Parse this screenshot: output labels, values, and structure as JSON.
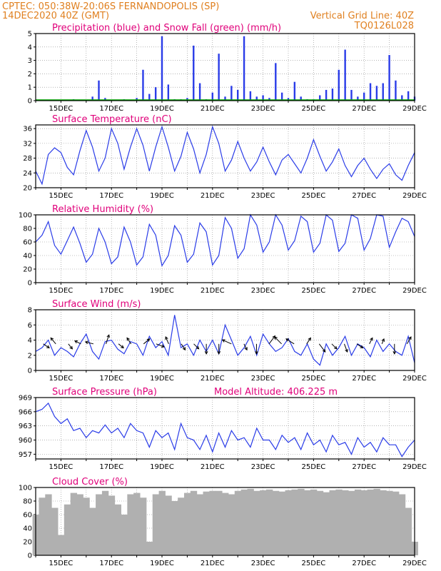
{
  "header": {
    "line1_left": "CPTEC:   050:38W-20:06S   FERNANDOPOLIS (SP)",
    "line2_left": "14DEC2020 40Z (GMT)",
    "line2_right": "Vertical Grid Line: 40Z",
    "line3_right": "TQ0126L028"
  },
  "colors": {
    "header": "#e08020",
    "title": "#e0007a",
    "line": "#2a3ce8",
    "snow": "#00aa00",
    "cloud": "#b0b0b0"
  },
  "x_ticks": [
    "15DEC",
    "17DEC",
    "19DEC",
    "21DEC",
    "23DEC",
    "25DEC",
    "27DEC",
    "29DEC"
  ],
  "chart_data": [
    {
      "type": "bar",
      "title": "Precipitation (blue) and Snow Fall (green) (mm/h)",
      "ylim": [
        0,
        5
      ],
      "yticks": [
        0,
        1,
        2,
        3,
        4,
        5
      ],
      "days": [
        14.0,
        14.5,
        15.0,
        15.5,
        16.0,
        16.25,
        16.5,
        16.75,
        17.0,
        17.5,
        18.0,
        18.25,
        18.5,
        18.75,
        19.0,
        19.25,
        19.5,
        19.75,
        20.0,
        20.25,
        20.5,
        20.75,
        21.0,
        21.25,
        21.5,
        21.75,
        22.0,
        22.25,
        22.5,
        22.75,
        23.0,
        23.25,
        23.5,
        23.75,
        24.0,
        24.25,
        24.5,
        24.75,
        25.0,
        25.25,
        25.5,
        25.75,
        26.0,
        26.25,
        26.5,
        26.75,
        27.0,
        27.25,
        27.5,
        27.75,
        28.0,
        28.25,
        28.5,
        28.75,
        29.0
      ],
      "values": [
        0,
        0,
        0,
        0.1,
        0,
        0.3,
        1.5,
        0.2,
        0,
        0.1,
        0.2,
        2.3,
        0.5,
        1.0,
        4.8,
        1.2,
        0.1,
        0.1,
        0.2,
        4.1,
        1.3,
        0.1,
        0.6,
        3.5,
        0.3,
        1.1,
        0.8,
        4.8,
        0.7,
        0.3,
        0.4,
        0.2,
        2.8,
        0.6,
        0.2,
        1.4,
        0.3,
        0.1,
        0.1,
        0.4,
        0.8,
        0.9,
        2.3,
        3.8,
        0.8,
        0.3,
        0.6,
        1.3,
        1.1,
        1.3,
        3.4,
        1.5,
        0.4,
        0.7,
        0.3
      ],
      "snow": 0
    },
    {
      "type": "line",
      "title": "Surface Temperature (nC)",
      "ylim": [
        20,
        37
      ],
      "yticks": [
        20,
        24,
        28,
        32,
        36
      ],
      "x": [
        14.0,
        14.25,
        14.5,
        14.75,
        15.0,
        15.25,
        15.5,
        15.75,
        16.0,
        16.25,
        16.5,
        16.75,
        17.0,
        17.25,
        17.5,
        17.75,
        18.0,
        18.25,
        18.5,
        18.75,
        19.0,
        19.25,
        19.5,
        19.75,
        20.0,
        20.25,
        20.5,
        20.75,
        21.0,
        21.25,
        21.5,
        21.75,
        22.0,
        22.25,
        22.5,
        22.75,
        23.0,
        23.25,
        23.5,
        23.75,
        24.0,
        24.25,
        24.5,
        24.75,
        25.0,
        25.25,
        25.5,
        25.75,
        26.0,
        26.25,
        26.5,
        26.75,
        27.0,
        27.25,
        27.5,
        27.75,
        28.0,
        28.25,
        28.5,
        28.75,
        29.0
      ],
      "values": [
        24.5,
        21.0,
        29.0,
        30.8,
        29.5,
        25.5,
        23.5,
        30.0,
        35.5,
        31.0,
        24.5,
        28.0,
        36.0,
        32.0,
        25.0,
        31.0,
        36.0,
        31.5,
        24.5,
        31.0,
        36.5,
        31.0,
        24.5,
        28.5,
        35.0,
        30.5,
        24.0,
        29.0,
        36.5,
        32.0,
        24.5,
        27.5,
        32.5,
        28.0,
        24.5,
        27.0,
        31.0,
        27.0,
        23.5,
        27.5,
        29.0,
        26.5,
        24.0,
        28.0,
        33.0,
        28.5,
        24.5,
        27.0,
        30.5,
        26.0,
        23.0,
        26.0,
        28.0,
        25.0,
        22.5,
        25.0,
        26.5,
        23.5,
        22.0,
        26.0,
        29.5
      ]
    },
    {
      "type": "line",
      "title": "Relative Humidity (%)",
      "ylim": [
        0,
        100
      ],
      "yticks": [
        0,
        20,
        40,
        60,
        80,
        100
      ],
      "x": [
        14.0,
        14.25,
        14.5,
        14.75,
        15.0,
        15.25,
        15.5,
        15.75,
        16.0,
        16.25,
        16.5,
        16.75,
        17.0,
        17.25,
        17.5,
        17.75,
        18.0,
        18.25,
        18.5,
        18.75,
        19.0,
        19.25,
        19.5,
        19.75,
        20.0,
        20.25,
        20.5,
        20.75,
        21.0,
        21.25,
        21.5,
        21.75,
        22.0,
        22.25,
        22.5,
        22.75,
        23.0,
        23.25,
        23.5,
        23.75,
        24.0,
        24.25,
        24.5,
        24.75,
        25.0,
        25.25,
        25.5,
        25.75,
        26.0,
        26.25,
        26.5,
        26.75,
        27.0,
        27.25,
        27.5,
        27.75,
        28.0,
        28.25,
        28.5,
        28.75,
        29.0
      ],
      "values": [
        60,
        70,
        90,
        55,
        42,
        62,
        82,
        58,
        30,
        42,
        80,
        60,
        28,
        38,
        82,
        60,
        26,
        38,
        86,
        70,
        25,
        40,
        84,
        70,
        30,
        42,
        88,
        75,
        26,
        40,
        96,
        80,
        36,
        50,
        100,
        85,
        45,
        60,
        100,
        85,
        48,
        62,
        98,
        90,
        45,
        58,
        100,
        92,
        46,
        58,
        100,
        95,
        48,
        65,
        100,
        98,
        52,
        75,
        95,
        90,
        68
      ]
    },
    {
      "type": "line",
      "title": "Surface Wind (m/s)",
      "ylim": [
        0,
        8
      ],
      "yticks": [
        0,
        2,
        4,
        6,
        8
      ],
      "x": [
        14.0,
        14.25,
        14.5,
        14.75,
        15.0,
        15.25,
        15.5,
        15.75,
        16.0,
        16.25,
        16.5,
        16.75,
        17.0,
        17.25,
        17.5,
        17.75,
        18.0,
        18.25,
        18.5,
        18.75,
        19.0,
        19.25,
        19.5,
        19.75,
        20.0,
        20.25,
        20.5,
        20.75,
        21.0,
        21.25,
        21.5,
        21.75,
        22.0,
        22.25,
        22.5,
        22.75,
        23.0,
        23.25,
        23.5,
        23.75,
        24.0,
        24.25,
        24.5,
        24.75,
        25.0,
        25.25,
        25.5,
        25.75,
        26.0,
        26.25,
        26.5,
        26.75,
        27.0,
        27.25,
        27.5,
        27.75,
        28.0,
        28.25,
        28.5,
        28.75,
        29.0
      ],
      "values": [
        2.5,
        3.0,
        4.0,
        2.0,
        3.0,
        2.5,
        1.8,
        3.5,
        4.8,
        2.5,
        1.5,
        3.8,
        4.0,
        2.8,
        2.2,
        3.8,
        3.5,
        2.0,
        4.5,
        3.0,
        3.8,
        2.0,
        7.3,
        3.0,
        3.5,
        2.0,
        4.0,
        2.5,
        4.0,
        2.2,
        6.0,
        4.0,
        2.0,
        3.0,
        4.5,
        2.0,
        4.8,
        3.5,
        2.5,
        3.0,
        4.2,
        2.5,
        2.0,
        3.5,
        1.5,
        0.7,
        3.5,
        2.0,
        3.0,
        4.5,
        2.0,
        3.5,
        3.0,
        1.8,
        4.0,
        2.5,
        3.5,
        2.5,
        2.0,
        4.5,
        1.0
      ],
      "arrows_u": [
        0.6,
        -0.5,
        0.4,
        -0.6,
        -0.8,
        0.3,
        0.5,
        -0.4,
        0.6,
        0.8,
        -0.3,
        0.4,
        0.5,
        0.0,
        0.0,
        -0.9,
        0.3,
        0.0,
        0.6,
        -0.7,
        -0.8,
        0.4,
        0.6,
        0.5,
        0.3,
        0.6,
        0.3,
        0.2,
        0.0,
        0.4
      ],
      "arrows_v": [
        -0.4,
        0.6,
        -0.5,
        0.3,
        0.2,
        0.9,
        -0.4,
        0.6,
        0.5,
        -0.3,
        0.7,
        -0.6,
        -0.5,
        -1.0,
        -1.0,
        0.4,
        -0.6,
        -1.0,
        0.8,
        0.7,
        0.5,
        0.6,
        -0.8,
        -0.5,
        -0.8,
        -0.4,
        0.6,
        0.5,
        -1.0,
        0.7
      ]
    },
    {
      "type": "line",
      "title": "Surface Pressure (hPa)",
      "annotation": "Model Altitude: 406.225 m",
      "ylim": [
        956,
        969
      ],
      "yticks": [
        957,
        960,
        963,
        966,
        969
      ],
      "x": [
        14.0,
        14.25,
        14.5,
        14.75,
        15.0,
        15.25,
        15.5,
        15.75,
        16.0,
        16.25,
        16.5,
        16.75,
        17.0,
        17.25,
        17.5,
        17.75,
        18.0,
        18.25,
        18.5,
        18.75,
        19.0,
        19.25,
        19.5,
        19.75,
        20.0,
        20.25,
        20.5,
        20.75,
        21.0,
        21.25,
        21.5,
        21.75,
        22.0,
        22.25,
        22.5,
        22.75,
        23.0,
        23.25,
        23.5,
        23.75,
        24.0,
        24.25,
        24.5,
        24.75,
        25.0,
        25.25,
        25.5,
        25.75,
        26.0,
        26.25,
        26.5,
        26.75,
        27.0,
        27.25,
        27.5,
        27.75,
        28.0,
        28.25,
        28.5,
        28.75,
        29.0
      ],
      "values": [
        966.0,
        966.5,
        967.8,
        965.0,
        963.5,
        964.5,
        962.0,
        962.5,
        960.5,
        962.0,
        961.5,
        963.2,
        961.5,
        962.5,
        960.5,
        963.5,
        962.0,
        961.5,
        958.5,
        962.0,
        960.5,
        961.5,
        958.0,
        963.5,
        960.5,
        960.0,
        958.0,
        961.0,
        957.5,
        961.5,
        958.5,
        962.0,
        960.0,
        960.5,
        958.5,
        962.5,
        960.0,
        960.0,
        958.0,
        961.0,
        959.5,
        960.5,
        958.0,
        961.5,
        959.0,
        960.0,
        957.5,
        961.0,
        959.0,
        959.5,
        957.0,
        960.5,
        958.5,
        959.5,
        957.5,
        960.5,
        959.0,
        959.0,
        956.5,
        958.5,
        960.0
      ]
    },
    {
      "type": "bar",
      "title": "Cloud Cover (%)",
      "ylim": [
        0,
        100
      ],
      "yticks": [
        0,
        20,
        40,
        60,
        80,
        100
      ],
      "x": [
        14.0,
        14.25,
        14.5,
        14.75,
        15.0,
        15.25,
        15.5,
        15.75,
        16.0,
        16.25,
        16.5,
        16.75,
        17.0,
        17.25,
        17.5,
        17.75,
        18.0,
        18.25,
        18.5,
        18.75,
        19.0,
        19.25,
        19.5,
        19.75,
        20.0,
        20.25,
        20.5,
        20.75,
        21.0,
        21.25,
        21.5,
        21.75,
        22.0,
        22.25,
        22.5,
        22.75,
        23.0,
        23.25,
        23.5,
        23.75,
        24.0,
        24.25,
        24.5,
        24.75,
        25.0,
        25.25,
        25.5,
        25.75,
        26.0,
        26.25,
        26.5,
        26.75,
        27.0,
        27.25,
        27.5,
        27.75,
        28.0,
        28.25,
        28.5,
        28.75,
        29.0
      ],
      "values": [
        60,
        85,
        90,
        70,
        30,
        75,
        92,
        90,
        85,
        70,
        90,
        95,
        88,
        75,
        60,
        90,
        92,
        85,
        20,
        90,
        95,
        88,
        80,
        85,
        92,
        95,
        90,
        94,
        95,
        95,
        92,
        90,
        95,
        97,
        98,
        95,
        96,
        97,
        95,
        94,
        96,
        97,
        98,
        96,
        97,
        95,
        93,
        96,
        97,
        96,
        95,
        97,
        96,
        97,
        98,
        96,
        95,
        94,
        90,
        70,
        20
      ]
    }
  ]
}
